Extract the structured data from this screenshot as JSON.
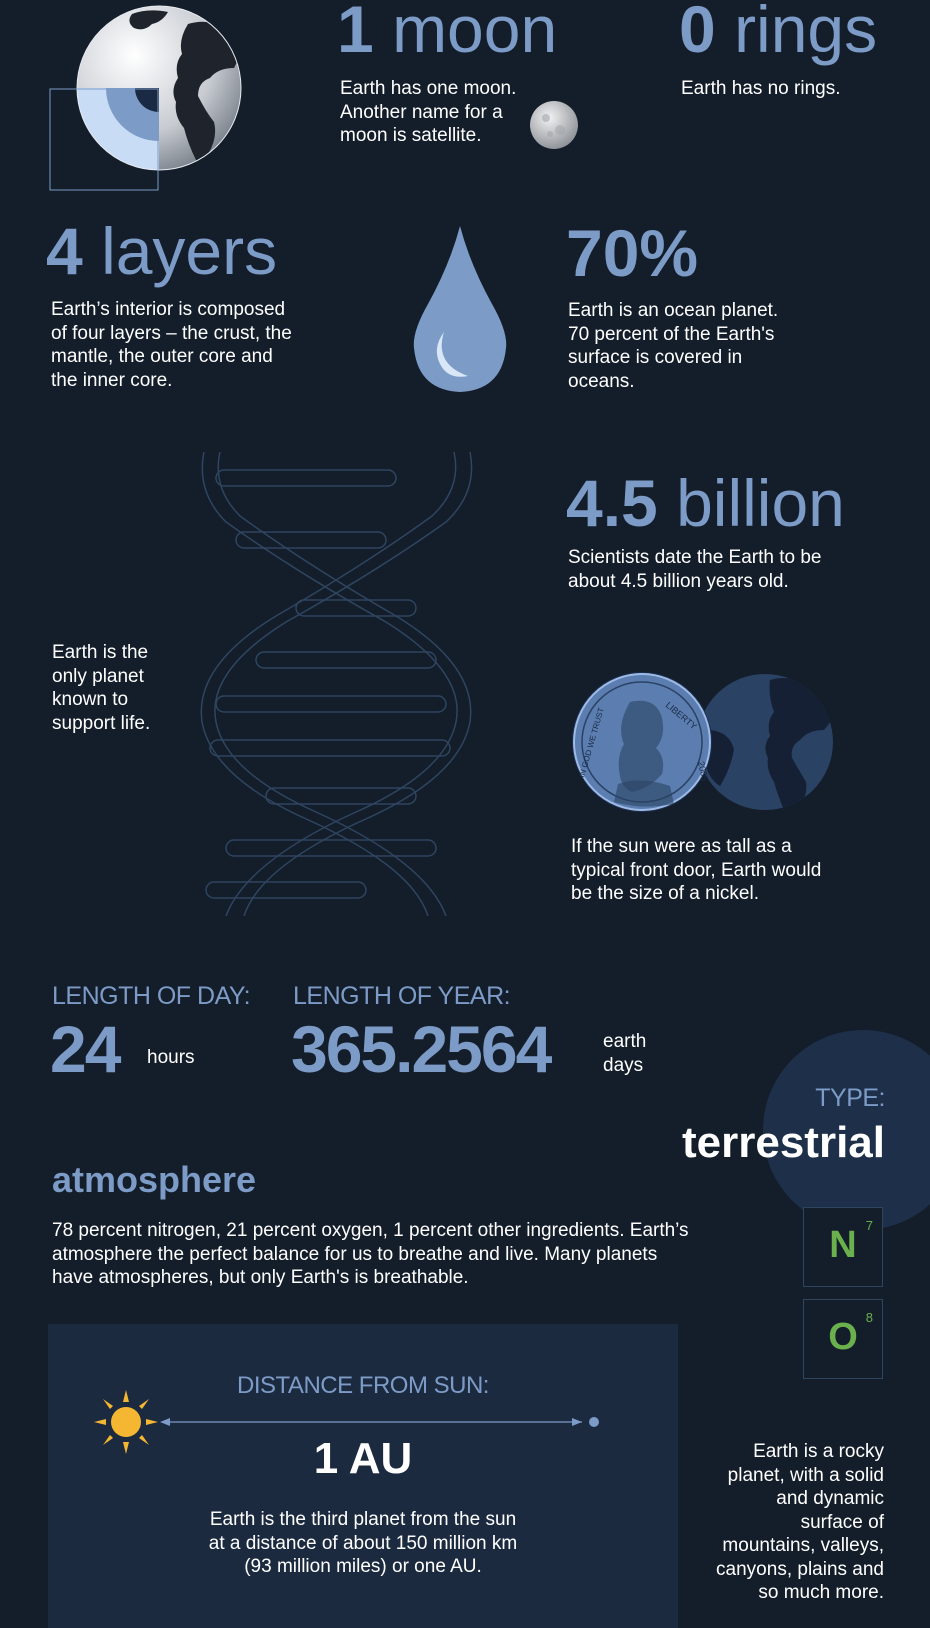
{
  "moons": {
    "number": "1",
    "unit": "moon",
    "text": "Earth has one moon. Another name for a moon is satellite."
  },
  "rings": {
    "number": "0",
    "unit": "rings",
    "text": "Earth has no rings."
  },
  "layers": {
    "number": "4",
    "unit": "layers",
    "text": "Earth’s interior is composed of four layers – the crust, the mantle, the outer core and the inner core."
  },
  "ocean": {
    "number": "70%",
    "text": "Earth is an ocean planet. 70 percent of the Earth's surface is covered in oceans."
  },
  "age": {
    "number": "4.5",
    "unit": "billion",
    "text": "Scientists date the Earth to be about 4.5 billion years old."
  },
  "life": {
    "text": "Earth is the only planet known to support life."
  },
  "nickel": {
    "text": "If the sun were as tall as a typical front door, Earth would be the size of a nickel.",
    "coin_top": "LIBERTY",
    "coin_left": "IN GOD WE TRUST",
    "coin_year": "2005"
  },
  "day": {
    "label": "LENGTH OF DAY:",
    "value": "24",
    "unit": "hours"
  },
  "year": {
    "label": "LENGTH OF YEAR:",
    "value": "365.2564",
    "unit_line1": "earth",
    "unit_line2": "days"
  },
  "type": {
    "label": "TYPE:",
    "value": "terrestrial"
  },
  "atmosphere": {
    "title": "atmosphere",
    "text": "78 percent nitrogen, 21 percent oxygen, 1 percent other ingredients. Earth’s atmosphere the perfect balance for us to breathe and live. Many planets have atmospheres, but only Earth's is breathable."
  },
  "elements": [
    {
      "symbol": "N",
      "number": "7"
    },
    {
      "symbol": "O",
      "number": "8"
    }
  ],
  "distance": {
    "label": "DISTANCE FROM SUN:",
    "value": "1 AU",
    "text": "Earth is the third planet from the sun at a distance of about 150 million km (93 million miles) or one AU."
  },
  "rocky": {
    "text": "Earth is a rocky planet, with a solid and dynamic surface of mountains, valleys, canyons, plains and so much more."
  },
  "colors": {
    "background": "#141d2a",
    "accent": "#7c9bc6",
    "panel": "#1c2a40",
    "element_green": "#6ab04c",
    "sun": "#f5b731"
  }
}
